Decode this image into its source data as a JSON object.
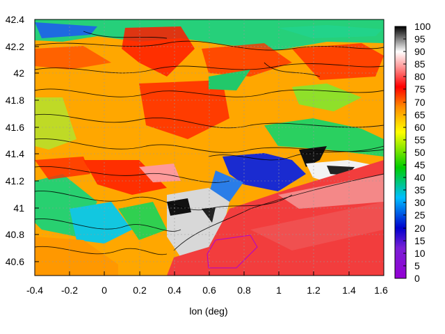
{
  "chart_data": {
    "type": "heatmap",
    "title": "",
    "xlabel": "lon (deg)",
    "ylabel": "",
    "xlim": [
      -0.4,
      1.6
    ],
    "ylim": [
      40.5,
      42.4
    ],
    "x_ticks": [
      "-0.4",
      "-0.2",
      "0",
      "0.2",
      "0.4",
      "0.6",
      "0.8",
      "1",
      "1.2",
      "1.4",
      "1.6"
    ],
    "y_ticks": [
      "42.4",
      "42.2",
      "42",
      "41.8",
      "41.6",
      "41.4",
      "41.2",
      "41",
      "40.8",
      "40.6"
    ],
    "colorbar": {
      "range": [
        0,
        100
      ],
      "ticks": [
        "100",
        "95",
        "90",
        "85",
        "80",
        "75",
        "70",
        "65",
        "60",
        "55",
        "50",
        "45",
        "40",
        "35",
        "30",
        "25",
        "20",
        "15",
        "10",
        "5",
        "0"
      ]
    },
    "contours": true,
    "colormap": [
      "#9400d3",
      "#0000cd",
      "#00bfff",
      "#00cd00",
      "#ffff00",
      "#ff8c00",
      "#ff0000",
      "#ff9999",
      "#ffffff",
      "#000000"
    ]
  }
}
